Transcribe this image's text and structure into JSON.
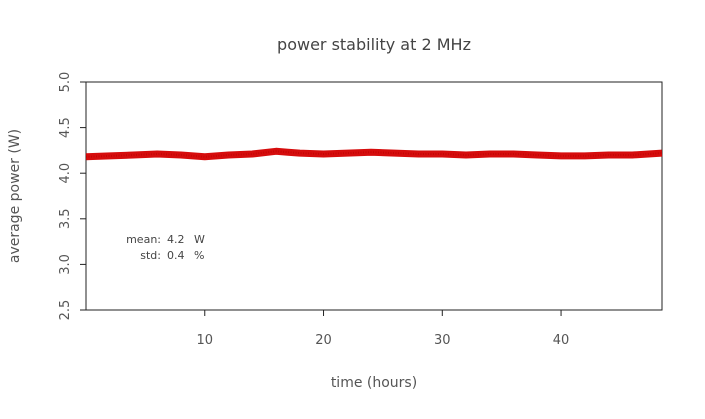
{
  "chart_data": {
    "type": "line",
    "title": "power stability at 2 MHz",
    "xlabel": "time (hours)",
    "ylabel": "average power (W)",
    "xlim": [
      0,
      48.5
    ],
    "ylim": [
      2.5,
      5.0
    ],
    "xticks": [
      10,
      20,
      30,
      40
    ],
    "yticks": [
      2.5,
      3.0,
      3.5,
      4.0,
      4.5,
      5.0
    ],
    "ytick_labels": [
      "2.5",
      "3.0",
      "3.5",
      "4.0",
      "4.5",
      "5.0"
    ],
    "grid": false,
    "series": [
      {
        "color": "#d40000",
        "x": [
          0,
          2,
          4,
          6,
          8,
          10,
          12,
          14,
          16,
          17,
          18,
          20,
          22,
          24,
          26,
          28,
          30,
          32,
          34,
          36,
          38,
          40,
          42,
          44,
          46,
          48.5
        ],
        "values": [
          4.18,
          4.19,
          4.2,
          4.21,
          4.2,
          4.18,
          4.2,
          4.21,
          4.24,
          4.23,
          4.22,
          4.21,
          4.22,
          4.23,
          4.22,
          4.21,
          4.21,
          4.2,
          4.21,
          4.21,
          4.2,
          4.19,
          4.19,
          4.2,
          4.2,
          4.22
        ]
      }
    ],
    "annotations": {
      "mean_label": "mean:",
      "mean_value": "4.2",
      "mean_unit": "W",
      "std_label": "std:",
      "std_value": "0.4",
      "std_unit": "%"
    }
  }
}
